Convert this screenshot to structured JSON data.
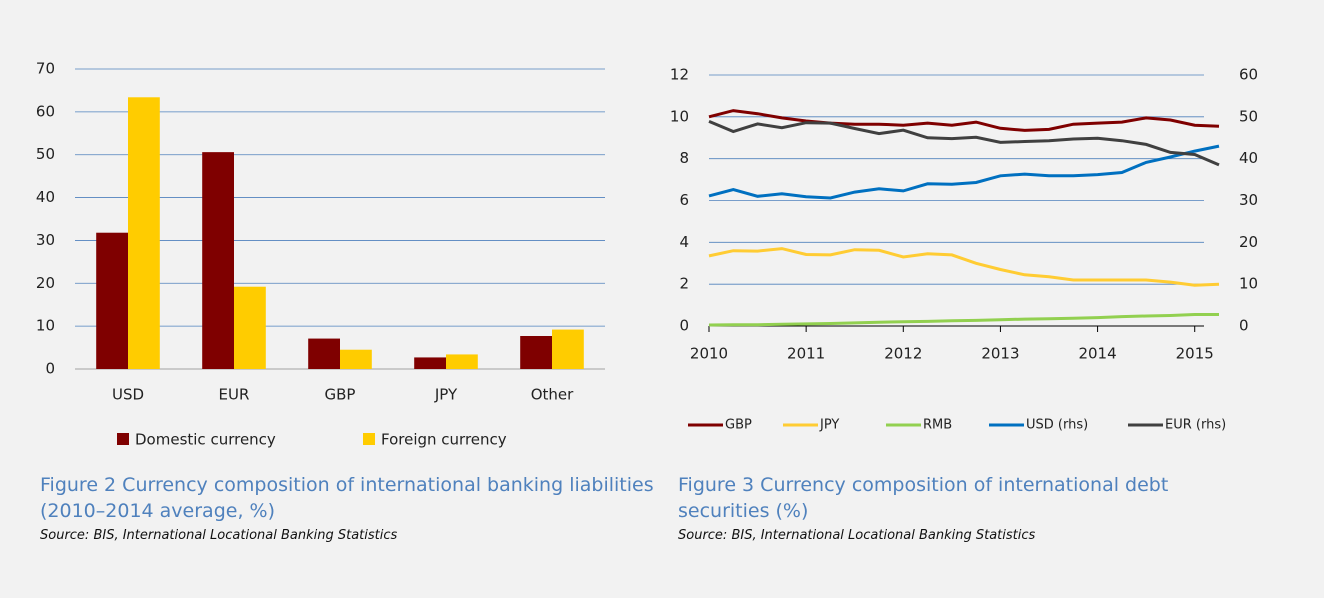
{
  "chart_data": [
    {
      "type": "bar",
      "caption": "Figure 2 Currency composition of international banking liabilities (2010–2014 average, %)",
      "source": "Source: BIS, International Locational Banking Statistics",
      "categories": [
        "USD",
        "EUR",
        "GBP",
        "JPY",
        "Other"
      ],
      "series": [
        {
          "name": "Domestic currency",
          "color": "#7f0000",
          "values": [
            31.8,
            50.6,
            7.1,
            2.7,
            7.7
          ]
        },
        {
          "name": "Foreign currency",
          "color": "#ffcc00",
          "values": [
            63.4,
            19.2,
            4.5,
            3.4,
            9.2
          ]
        }
      ],
      "ylim": [
        0,
        70
      ],
      "yticks": [
        0,
        10,
        20,
        30,
        40,
        50,
        60,
        70
      ],
      "grid": true,
      "legend": "bottom"
    },
    {
      "type": "line",
      "caption": "Figure 3 Currency composition of international debt securities (%)",
      "source": "Source: BIS, International Locational Banking Statistics",
      "x": [
        2010,
        2010.25,
        2010.5,
        2010.75,
        2011,
        2011.25,
        2011.5,
        2011.75,
        2012,
        2012.25,
        2012.5,
        2012.75,
        2013,
        2013.25,
        2013.5,
        2013.75,
        2014,
        2014.25,
        2014.5,
        2014.75,
        2015,
        2015.25
      ],
      "series": [
        {
          "name": "GBP",
          "color": "#7f0000",
          "values": [
            10,
            10.3,
            10.15,
            9.95,
            9.8,
            9.7,
            9.65,
            9.65,
            9.6,
            9.7,
            9.6,
            9.75,
            9.45,
            9.35,
            9.4,
            9.65,
            9.7,
            9.75,
            9.95,
            9.85,
            9.6,
            9.55
          ]
        },
        {
          "name": "JPY",
          "color": "#ffcc33",
          "values": [
            3.35,
            3.6,
            3.58,
            3.7,
            3.42,
            3.4,
            3.65,
            3.62,
            3.3,
            3.45,
            3.4,
            3.0,
            2.7,
            2.45,
            2.35,
            2.2,
            2.2,
            2.2,
            2.2,
            2.1,
            1.95,
            2.0
          ]
        },
        {
          "name": "RMB",
          "color": "#92d050",
          "values": [
            0.05,
            0.06,
            0.06,
            0.08,
            0.1,
            0.12,
            0.15,
            0.18,
            0.2,
            0.22,
            0.25,
            0.27,
            0.3,
            0.33,
            0.35,
            0.37,
            0.4,
            0.45,
            0.48,
            0.5,
            0.55,
            0.55
          ]
        },
        {
          "name": "USD (rhs)",
          "color": "#0070c0",
          "axis": "y2",
          "values": [
            31.1,
            32.6,
            31.0,
            31.6,
            30.9,
            30.6,
            32.0,
            32.8,
            32.3,
            34.0,
            33.9,
            34.3,
            35.9,
            36.3,
            35.9,
            35.9,
            36.2,
            36.7,
            39.1,
            40.4,
            41.8,
            43.0
          ]
        },
        {
          "name": "EUR (rhs)",
          "color": "#404040",
          "axis": "y2",
          "values": [
            48.9,
            46.5,
            48.3,
            47.4,
            48.6,
            48.5,
            47.2,
            46.0,
            46.8,
            45.0,
            44.8,
            45.1,
            43.9,
            44.1,
            44.3,
            44.7,
            44.9,
            44.3,
            43.4,
            41.5,
            41.0,
            38.5
          ]
        }
      ],
      "xlim": [
        2010,
        2015.25
      ],
      "xticks": [
        2010,
        2011,
        2012,
        2013,
        2014,
        2015
      ],
      "ylim": [
        0,
        12
      ],
      "yticks": [
        0,
        2,
        4,
        6,
        8,
        10,
        12
      ],
      "y2lim": [
        0,
        60
      ],
      "y2ticks": [
        0,
        10,
        20,
        30,
        40,
        50,
        60
      ],
      "grid": true,
      "legend": "bottom"
    }
  ]
}
